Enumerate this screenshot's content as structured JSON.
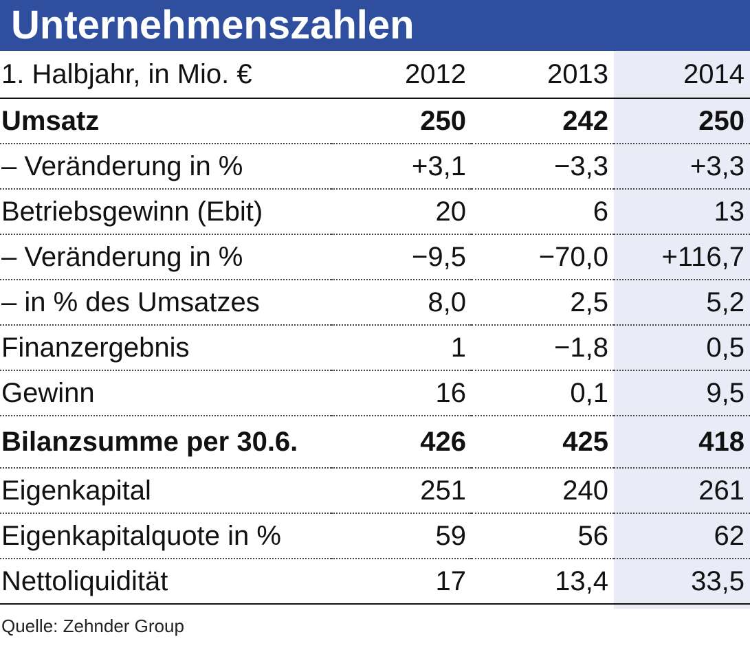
{
  "title": "Unternehmenszahlen",
  "header": {
    "label": "1. Halbjahr, in Mio. €",
    "years": [
      "2012",
      "2013",
      "2014"
    ]
  },
  "rows": [
    {
      "label": "Umsatz",
      "values": [
        "250",
        "242",
        "250"
      ],
      "bold": true
    },
    {
      "label": "– Veränderung in %",
      "values": [
        "+3,1",
        "−3,3",
        "+3,3"
      ],
      "bold": false
    },
    {
      "label": "Betriebsgewinn (Ebit)",
      "values": [
        "20",
        "6",
        "13"
      ],
      "bold": false
    },
    {
      "label": "– Veränderung in %",
      "values": [
        "−9,5",
        "−70,0",
        "+116,7"
      ],
      "bold": false
    },
    {
      "label": "– in % des Umsatzes",
      "values": [
        "8,0",
        "2,5",
        "5,2"
      ],
      "bold": false
    },
    {
      "label": "Finanzergebnis",
      "values": [
        "1",
        "−1,8",
        "0,5"
      ],
      "bold": false
    },
    {
      "label": "Gewinn",
      "values": [
        "16",
        "0,1",
        "9,5"
      ],
      "bold": false
    },
    {
      "label": "Bilanzsumme per 30.6.",
      "values": [
        "426",
        "425",
        "418"
      ],
      "bold": true
    },
    {
      "label": "Eigenkapital",
      "values": [
        "251",
        "240",
        "261"
      ],
      "bold": false
    },
    {
      "label": "Eigenkapitalquote in %",
      "values": [
        "59",
        "56",
        "62"
      ],
      "bold": false
    },
    {
      "label": "Nettoliquidität",
      "values": [
        "17",
        "13,4",
        "33,5"
      ],
      "bold": false
    }
  ],
  "source": "Quelle: Zehnder Group",
  "colors": {
    "title_bar": "#2f4f9e",
    "highlight_column": "#e9ebf7"
  }
}
